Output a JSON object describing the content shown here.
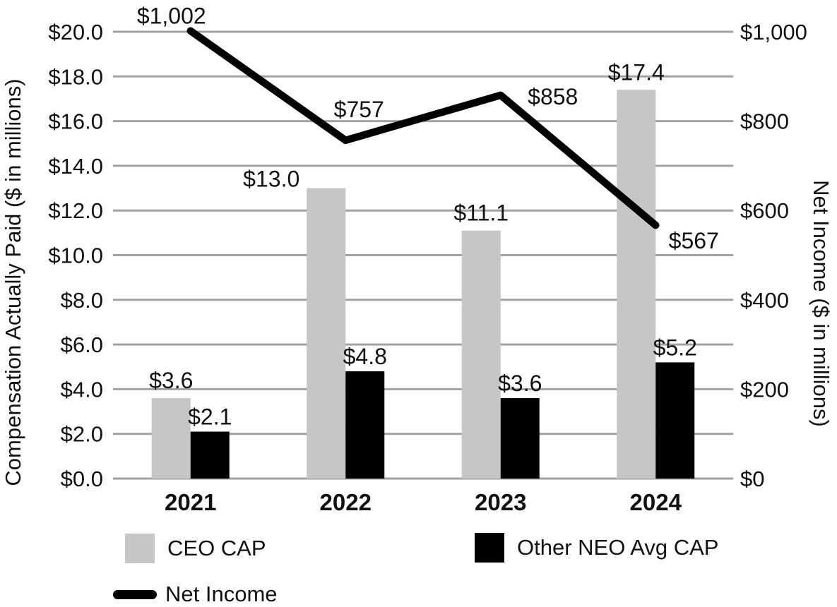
{
  "chart_data": {
    "type": "bar",
    "subtype": "grouped-bars-with-line-overlay",
    "categories": [
      "2021",
      "2022",
      "2023",
      "2024"
    ],
    "series": [
      {
        "name": "CEO CAP",
        "type": "bar",
        "axis": "left",
        "color": "#c6c6c6",
        "values": [
          3.6,
          13.0,
          11.1,
          17.4
        ],
        "labels": [
          "$3.6",
          "$13.0",
          "$11.1",
          "$17.4"
        ]
      },
      {
        "name": "Other NEO Avg CAP",
        "type": "bar",
        "axis": "left",
        "color": "#000000",
        "values": [
          2.1,
          4.8,
          3.6,
          5.2
        ],
        "labels": [
          "$2.1",
          "$4.8",
          "$3.6",
          "$5.2"
        ]
      },
      {
        "name": "Net Income",
        "type": "line",
        "axis": "right",
        "color": "#000000",
        "values": [
          1002,
          757,
          858,
          567
        ],
        "labels": [
          "$1,002",
          "$757",
          "$858",
          "$567"
        ]
      }
    ],
    "left_axis": {
      "title": "Compensation Actually Paid ($ in millions)",
      "min": 0,
      "max": 20,
      "step": 2,
      "tick_labels": [
        "$0.0",
        "$2.0",
        "$4.0",
        "$6.0",
        "$8.0",
        "$10.0",
        "$12.0",
        "$14.0",
        "$16.0",
        "$18.0",
        "$20.0"
      ]
    },
    "right_axis": {
      "title": "Net Income ($ in millions)",
      "min": 0,
      "max": 1000,
      "step": 200,
      "tick_labels": [
        "$0",
        "$200",
        "$400",
        "$600",
        "$800",
        "$1,000"
      ]
    },
    "grid": true,
    "legend_position": "bottom-left-two-rows"
  },
  "colors": {
    "background": "#ffffff",
    "gridline": "#a2a2a2",
    "text": "#111111",
    "bar_gray": "#c6c6c6",
    "bar_black": "#000000",
    "line_black": "#000000"
  }
}
